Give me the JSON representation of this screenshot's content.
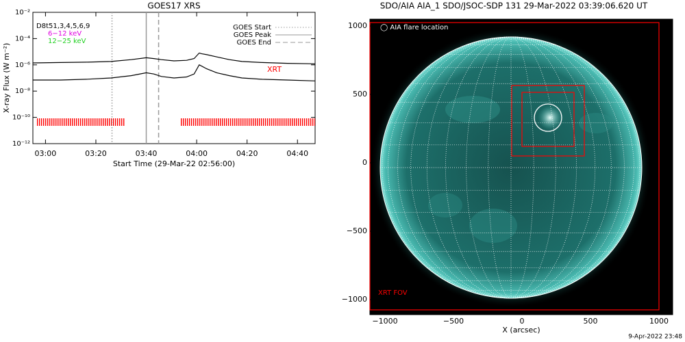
{
  "chart_data": [
    {
      "type": "line",
      "title": "GOES17 XRS",
      "xlabel": "Start Time (29-Mar-22 02:56:00)",
      "ylabel": "X-ray Flux (W m⁻²)",
      "log_y": true,
      "xlim": [
        -1,
        111
      ],
      "xticks": [
        {
          "value": 4,
          "label": "03:00"
        },
        {
          "value": 24,
          "label": "03:20"
        },
        {
          "value": 44,
          "label": "03:40"
        },
        {
          "value": 64,
          "label": "04:00"
        },
        {
          "value": 84,
          "label": "04:20"
        },
        {
          "value": 104,
          "label": "04:40"
        }
      ],
      "ylim": [
        1e-12,
        0.01
      ],
      "yticks": [
        {
          "value": 0.01,
          "label": "10⁻²"
        },
        {
          "value": 0.0001,
          "label": "10⁻⁴"
        },
        {
          "value": 1e-06,
          "label": "10⁻⁶"
        },
        {
          "value": 1e-08,
          "label": "10⁻⁸"
        },
        {
          "value": 1e-10,
          "label": "10⁻¹⁰"
        },
        {
          "value": 1e-12,
          "label": "10⁻¹²"
        }
      ],
      "x": [
        -1,
        10,
        20,
        30,
        38,
        44,
        47,
        50,
        55,
        60,
        63,
        65,
        66,
        68,
        72,
        77,
        82,
        90,
        100,
        111
      ],
      "series": [
        {
          "color": "#000000",
          "values": [
            1.4e-06,
            1.5e-06,
            1.6e-06,
            1.8e-06,
            2.5e-06,
            3.5e-06,
            3e-06,
            2.5e-06,
            2e-06,
            2.2e-06,
            3e-06,
            8e-06,
            7e-06,
            6e-06,
            4e-06,
            2.5e-06,
            1.8e-06,
            1.5e-06,
            1.3e-06,
            1.2e-06
          ]
        },
        {
          "color": "#000000",
          "values": [
            7e-08,
            7e-08,
            8e-08,
            1e-07,
            1.5e-07,
            2.5e-07,
            2e-07,
            1.3e-07,
            1e-07,
            1.2e-07,
            2e-07,
            1e-06,
            8e-07,
            5e-07,
            2.5e-07,
            1.5e-07,
            1e-07,
            8e-08,
            7e-08,
            6e-08
          ]
        }
      ],
      "events": [
        {
          "name": "GOES Start",
          "x": 30.4,
          "style": "dotted",
          "color": "#999999"
        },
        {
          "name": "GOES Peak",
          "x": 44,
          "style": "solid",
          "color": "#999999"
        },
        {
          "name": "GOES End",
          "x": 48.9,
          "style": "dashed",
          "color": "#999999"
        }
      ],
      "xrt_label": "XRT",
      "xrt_color": "#ff0000",
      "xrt_coverage": [
        [
          0.2,
          35.6
        ],
        [
          57.6,
          111
        ]
      ],
      "annotations": [
        {
          "text": "D8t51,3,4,5,6,9",
          "color": "#000000"
        },
        {
          "text": "6−12 keV",
          "color": "#e000e0"
        },
        {
          "text": "12−25 keV",
          "color": "#20d020"
        }
      ]
    },
    {
      "type": "image",
      "title": "SDO/AIA AIA_1 SDO/JSOC-SDP 131 29-Mar-2022 03:39:06.620 UT",
      "xlabel": "X (arcsec)",
      "xlim": [
        -1110,
        1100
      ],
      "ylim": [
        -1110,
        1050
      ],
      "xticks": [
        {
          "value": -1000,
          "label": "−1000"
        },
        {
          "value": -500,
          "label": "−500"
        },
        0,
        500,
        1000
      ],
      "yticks": [
        1000,
        500,
        0,
        {
          "value": -500,
          "label": "−500"
        },
        {
          "value": -1000,
          "label": "−1000"
        }
      ],
      "legend": "◯ AIA flare location",
      "fov_label": "XRT FOV",
      "box_color": "#ff0000",
      "boxes": [
        {
          "x": [
            -1110,
            1000
          ],
          "y": [
            -1075,
            1025
          ]
        },
        {
          "x": [
            -75,
            455
          ],
          "y": [
            50,
            565
          ]
        },
        {
          "x": [
            0,
            380
          ],
          "y": [
            120,
            515
          ]
        }
      ],
      "flare": {
        "x": 190,
        "y": 330,
        "r": 100
      },
      "footer": "9-Apr-2022 23:48"
    }
  ]
}
